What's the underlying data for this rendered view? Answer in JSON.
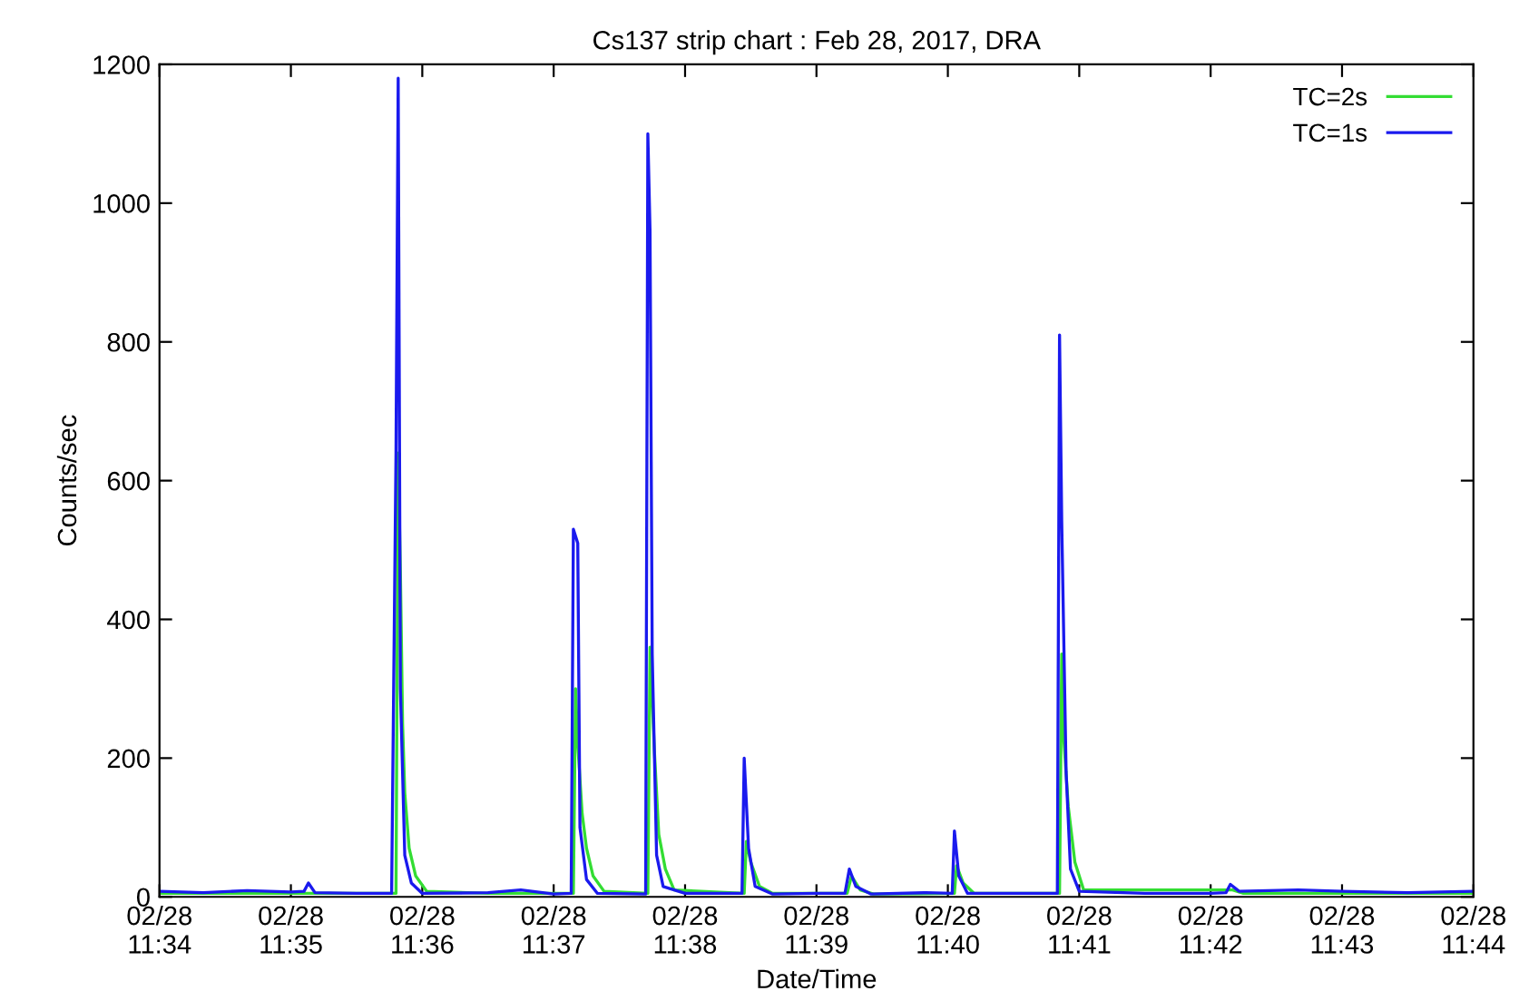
{
  "chart_data": {
    "type": "line",
    "title": "Cs137 strip chart : Feb 28, 2017, DRA",
    "xlabel": "Date/Time",
    "ylabel": "Counts/sec",
    "xlim": [
      "2017-02-28T11:34",
      "2017-02-28T11:44"
    ],
    "xticks": [
      {
        "value": "2017-02-28T11:34",
        "label": "02/28\n11:34"
      },
      {
        "value": "2017-02-28T11:35",
        "label": "02/28\n11:35"
      },
      {
        "value": "2017-02-28T11:36",
        "label": "02/28\n11:36"
      },
      {
        "value": "2017-02-28T11:37",
        "label": "02/28\n11:37"
      },
      {
        "value": "2017-02-28T11:38",
        "label": "02/28\n11:38"
      },
      {
        "value": "2017-02-28T11:39",
        "label": "02/28\n11:39"
      },
      {
        "value": "2017-02-28T11:40",
        "label": "02/28\n11:40"
      },
      {
        "value": "2017-02-28T11:41",
        "label": "02/28\n11:41"
      },
      {
        "value": "2017-02-28T11:42",
        "label": "02/28\n11:42"
      },
      {
        "value": "2017-02-28T11:43",
        "label": "02/28\n11:43"
      },
      {
        "value": "2017-02-28T11:44",
        "label": "02/28\n11:44"
      }
    ],
    "ylim": [
      0,
      1200
    ],
    "yticks": [
      0,
      200,
      400,
      600,
      800,
      1000,
      1200
    ],
    "grid": false,
    "legend": "top right",
    "marker": "none",
    "line_style": "solid",
    "series": [
      {
        "name": "TC=2s",
        "color": "#33dd33",
        "x": [
          "2017-02-28T11:34:00",
          "2017-02-28T11:35:00",
          "2017-02-28T11:35:48",
          "2017-02-28T11:35:49",
          "2017-02-28T11:35:50",
          "2017-02-28T11:35:51",
          "2017-02-28T11:35:52",
          "2017-02-28T11:35:54",
          "2017-02-28T11:35:57",
          "2017-02-28T11:36:02",
          "2017-02-28T11:36:30",
          "2017-02-28T11:37:09",
          "2017-02-28T11:37:10",
          "2017-02-28T11:37:11",
          "2017-02-28T11:37:13",
          "2017-02-28T11:37:15",
          "2017-02-28T11:37:18",
          "2017-02-28T11:37:23",
          "2017-02-28T11:37:43",
          "2017-02-28T11:37:44",
          "2017-02-28T11:37:46",
          "2017-02-28T11:37:48",
          "2017-02-28T11:37:51",
          "2017-02-28T11:37:55",
          "2017-02-28T11:38:27",
          "2017-02-28T11:38:28",
          "2017-02-28T11:38:30",
          "2017-02-28T11:38:34",
          "2017-02-28T11:38:40",
          "2017-02-28T11:39:14",
          "2017-02-28T11:39:16",
          "2017-02-28T11:39:20",
          "2017-02-28T11:39:26",
          "2017-02-28T11:40:03",
          "2017-02-28T11:40:04",
          "2017-02-28T11:40:07",
          "2017-02-28T11:40:12",
          "2017-02-28T11:40:51",
          "2017-02-28T11:40:52",
          "2017-02-28T11:40:53",
          "2017-02-28T11:40:55",
          "2017-02-28T11:40:58",
          "2017-02-28T11:41:02",
          "2017-02-28T11:42:10",
          "2017-02-28T11:42:15",
          "2017-02-28T11:44:00"
        ],
        "values": [
          5,
          5,
          5,
          640,
          470,
          250,
          150,
          70,
          30,
          8,
          5,
          5,
          300,
          220,
          120,
          70,
          30,
          8,
          5,
          360,
          210,
          90,
          40,
          10,
          5,
          80,
          50,
          15,
          5,
          5,
          30,
          10,
          4,
          5,
          45,
          20,
          5,
          5,
          350,
          225,
          130,
          50,
          10,
          10,
          5,
          5
        ]
      },
      {
        "name": "TC=1s",
        "color": "#1a1aee",
        "x": [
          "2017-02-28T11:34:00",
          "2017-02-28T11:34:20",
          "2017-02-28T11:34:40",
          "2017-02-28T11:35:00",
          "2017-02-28T11:35:06",
          "2017-02-28T11:35:08",
          "2017-02-28T11:35:11",
          "2017-02-28T11:35:30",
          "2017-02-28T11:35:46",
          "2017-02-28T11:35:48",
          "2017-02-28T11:35:49",
          "2017-02-28T11:35:50",
          "2017-02-28T11:35:52",
          "2017-02-28T11:35:55",
          "2017-02-28T11:36:00",
          "2017-02-28T11:36:30",
          "2017-02-28T11:36:45",
          "2017-02-28T11:37:00",
          "2017-02-28T11:37:08",
          "2017-02-28T11:37:09",
          "2017-02-28T11:37:11",
          "2017-02-28T11:37:12",
          "2017-02-28T11:37:15",
          "2017-02-28T11:37:20",
          "2017-02-28T11:37:42",
          "2017-02-28T11:37:43",
          "2017-02-28T11:37:44",
          "2017-02-28T11:37:45",
          "2017-02-28T11:37:47",
          "2017-02-28T11:37:50",
          "2017-02-28T11:38:00",
          "2017-02-28T11:38:26",
          "2017-02-28T11:38:27",
          "2017-02-28T11:38:29",
          "2017-02-28T11:38:32",
          "2017-02-28T11:38:40",
          "2017-02-28T11:39:00",
          "2017-02-28T11:39:13",
          "2017-02-28T11:39:15",
          "2017-02-28T11:39:18",
          "2017-02-28T11:39:25",
          "2017-02-28T11:39:50",
          "2017-02-28T11:40:02",
          "2017-02-28T11:40:03",
          "2017-02-28T11:40:05",
          "2017-02-28T11:40:09",
          "2017-02-28T11:40:30",
          "2017-02-28T11:40:50",
          "2017-02-28T11:40:51",
          "2017-02-28T11:40:52",
          "2017-02-28T11:40:54",
          "2017-02-28T11:40:56",
          "2017-02-28T11:41:00",
          "2017-02-28T11:41:30",
          "2017-02-28T11:42:00",
          "2017-02-28T11:42:07",
          "2017-02-28T11:42:09",
          "2017-02-28T11:42:13",
          "2017-02-28T11:42:40",
          "2017-02-28T11:43:00",
          "2017-02-28T11:43:30",
          "2017-02-28T11:44:00"
        ],
        "values": [
          8,
          6,
          9,
          7,
          8,
          20,
          6,
          5,
          5,
          640,
          1180,
          300,
          60,
          20,
          5,
          6,
          10,
          4,
          5,
          530,
          510,
          100,
          25,
          5,
          4,
          1100,
          960,
          350,
          60,
          15,
          5,
          5,
          200,
          70,
          15,
          4,
          5,
          5,
          40,
          15,
          4,
          6,
          5,
          95,
          30,
          5,
          5,
          5,
          810,
          540,
          180,
          40,
          8,
          5,
          5,
          6,
          18,
          8,
          10,
          8,
          6,
          8
        ]
      }
    ]
  }
}
